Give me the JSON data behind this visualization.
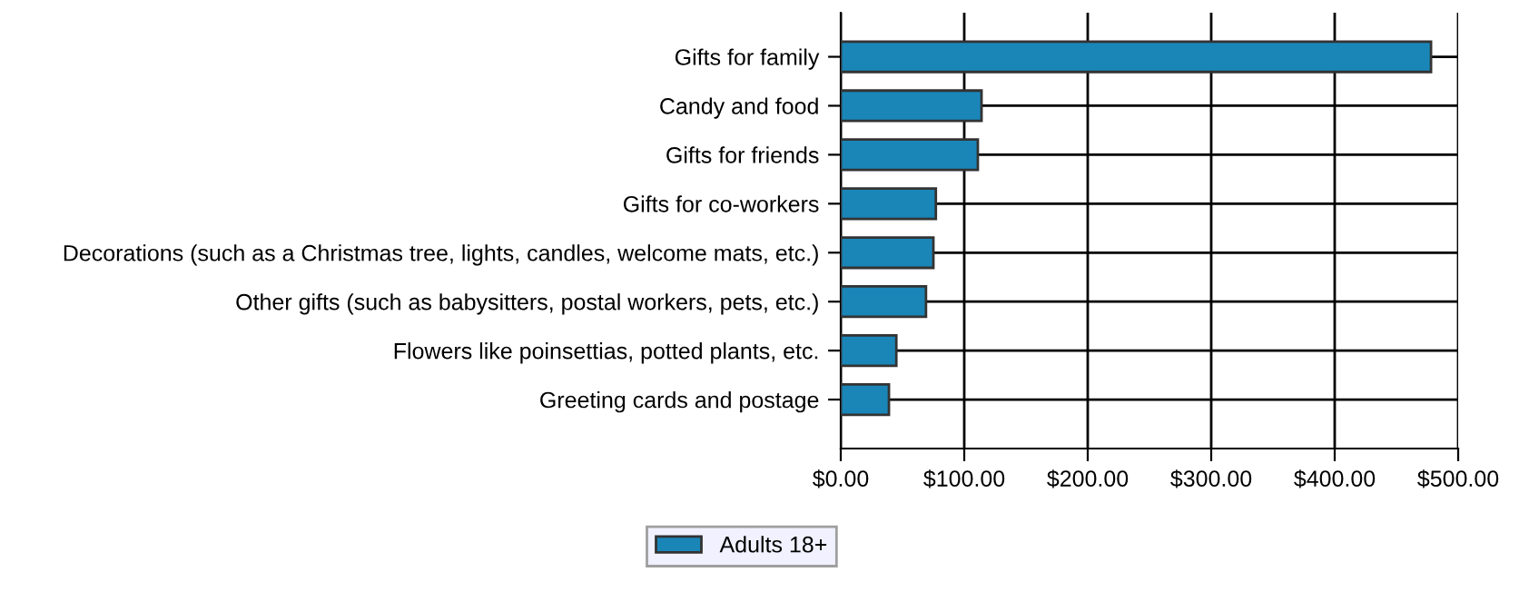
{
  "chart_data": {
    "type": "bar",
    "orientation": "horizontal",
    "categories": [
      "Gifts for family",
      "Candy and food",
      "Gifts for friends",
      "Gifts for co-workers",
      "Decorations (such as a Christmas tree, lights, candles, welcome mats, etc.)",
      "Other gifts (such as babysitters, postal workers, pets, etc.)",
      "Flowers like poinsettias, potted plants, etc.",
      "Greeting cards and postage"
    ],
    "series": [
      {
        "name": "Adults 18+",
        "color": "#1a86b8",
        "values": [
          478,
          114,
          111,
          77,
          75,
          69,
          45,
          39
        ]
      }
    ],
    "xlim": [
      0,
      500
    ],
    "xticks": [
      {
        "value": 0,
        "label": "$0.00"
      },
      {
        "value": 100,
        "label": "$100.00"
      },
      {
        "value": 200,
        "label": "$200.00"
      },
      {
        "value": 300,
        "label": "$300.00"
      },
      {
        "value": 400,
        "label": "$400.00"
      },
      {
        "value": 500,
        "label": "$500.00"
      }
    ],
    "grid": true,
    "legend": "bottom"
  }
}
